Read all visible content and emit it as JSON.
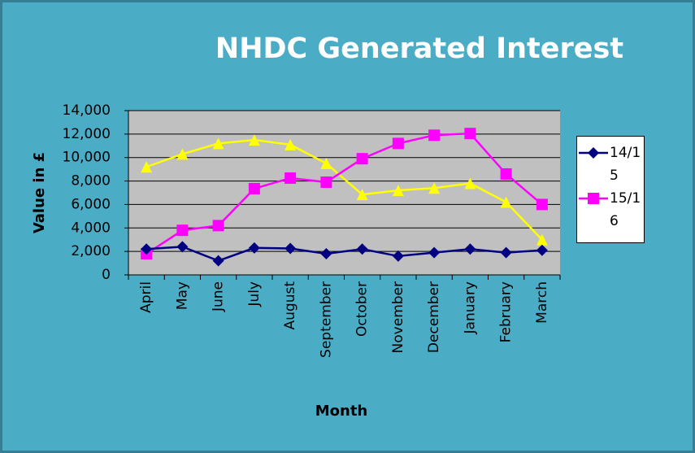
{
  "chart_data": {
    "type": "line",
    "title": "NHDC Generated Interest",
    "x_label": "Month",
    "y_label": "Value in £",
    "categories": [
      "April",
      "May",
      "June",
      "July",
      "August",
      "September",
      "October",
      "November",
      "December",
      "January",
      "February",
      "March"
    ],
    "series": [
      {
        "name": "14/15",
        "color": "#000080",
        "marker": "diamond",
        "values": [
          2200,
          2400,
          1200,
          2300,
          2250,
          1800,
          2200,
          1600,
          1900,
          2200,
          1900,
          2100
        ]
      },
      {
        "name": "15/16",
        "color": "#FF00FF",
        "marker": "square",
        "values": [
          1800,
          3800,
          4200,
          7350,
          8250,
          7900,
          9900,
          11200,
          11900,
          12050,
          8600,
          6000
        ]
      },
      {
        "color": "#FFFF00",
        "marker": "triangle",
        "values": [
          9200,
          10300,
          11200,
          11500,
          11100,
          9500,
          6850,
          7200,
          7400,
          7800,
          6200,
          3000
        ]
      }
    ],
    "ylim": [
      0,
      14000
    ],
    "yticks": [
      0,
      {
        "value": 2000,
        "label": "2,000"
      },
      {
        "value": 4000,
        "label": "4,000"
      },
      {
        "value": 6000,
        "label": "6,000"
      },
      {
        "value": 8000,
        "label": "8,000"
      },
      {
        "value": 10000,
        "label": "10,000"
      },
      {
        "value": 12000,
        "label": "12,000"
      },
      {
        "value": 14000,
        "label": "14,000"
      }
    ],
    "grid": true,
    "legend": "right"
  }
}
